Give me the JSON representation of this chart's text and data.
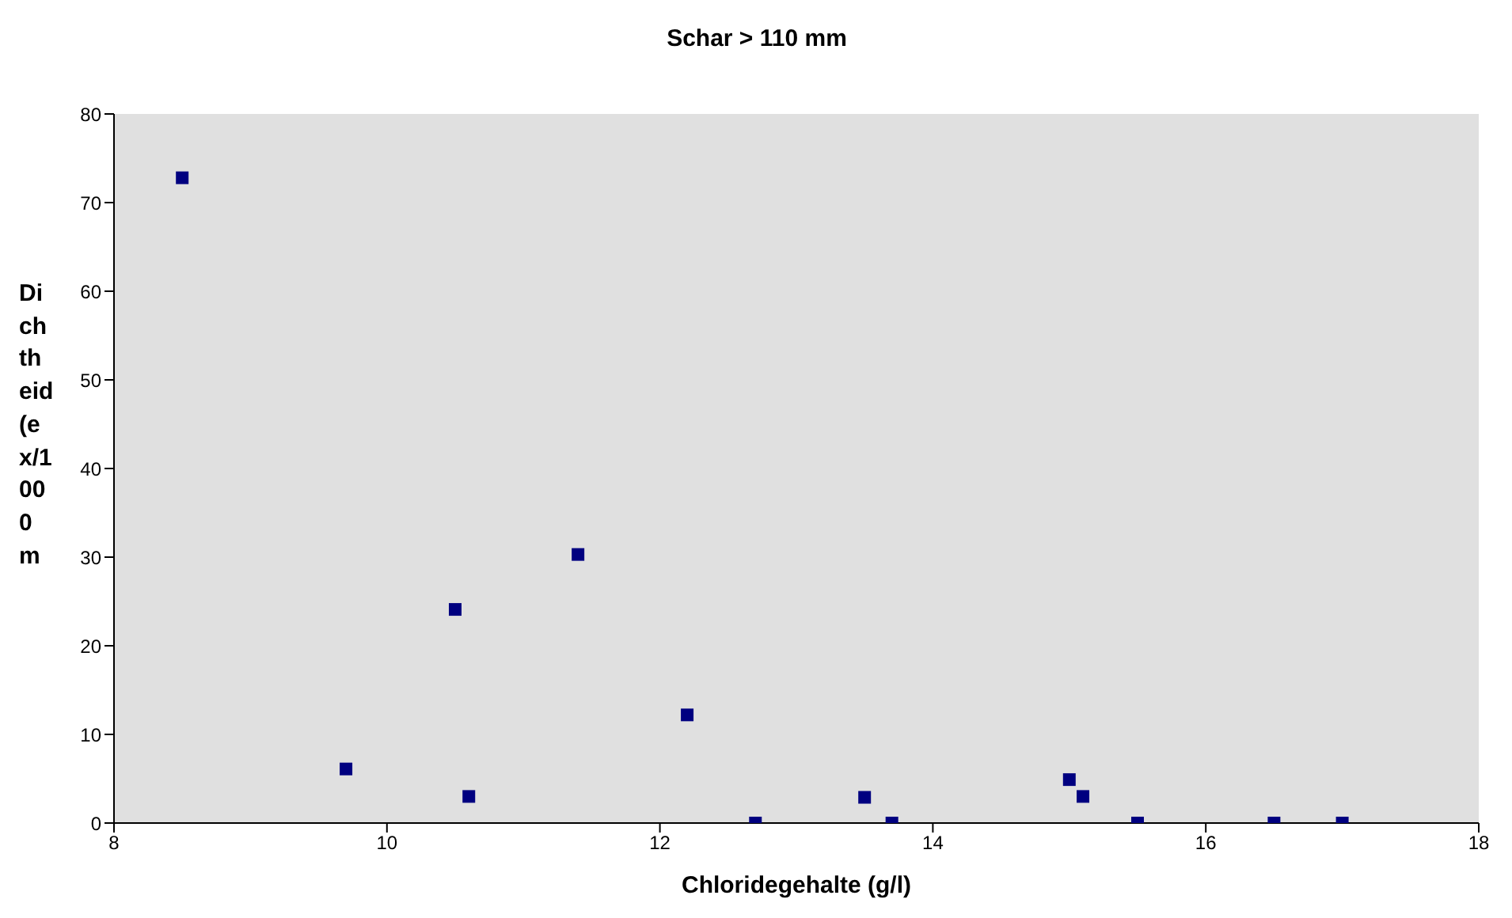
{
  "chart_data": {
    "type": "scatter",
    "title": "Schar > 110 mm",
    "xlabel": "Chloridegehalte (g/l)",
    "ylabel": "Dichtheid (ex/1000 m",
    "x": [
      8.5,
      9.7,
      10.5,
      10.6,
      11.4,
      12.2,
      12.7,
      13.5,
      13.7,
      15.0,
      15.1,
      15.5,
      16.5,
      17.0
    ],
    "series": [
      {
        "color": "#000080",
        "values": [
          72.8,
          6.1,
          24.1,
          3,
          30.3,
          12.2,
          0,
          2.9,
          0,
          4.9,
          3,
          0,
          0,
          0
        ]
      }
    ],
    "xlim": [
      8,
      18
    ],
    "xticks": [
      8,
      10,
      12,
      14,
      16,
      18
    ],
    "ylim": [
      0,
      80
    ],
    "yticks": [
      0,
      10,
      20,
      30,
      40,
      50,
      60,
      70,
      80
    ],
    "marker": "square",
    "legend": false
  }
}
